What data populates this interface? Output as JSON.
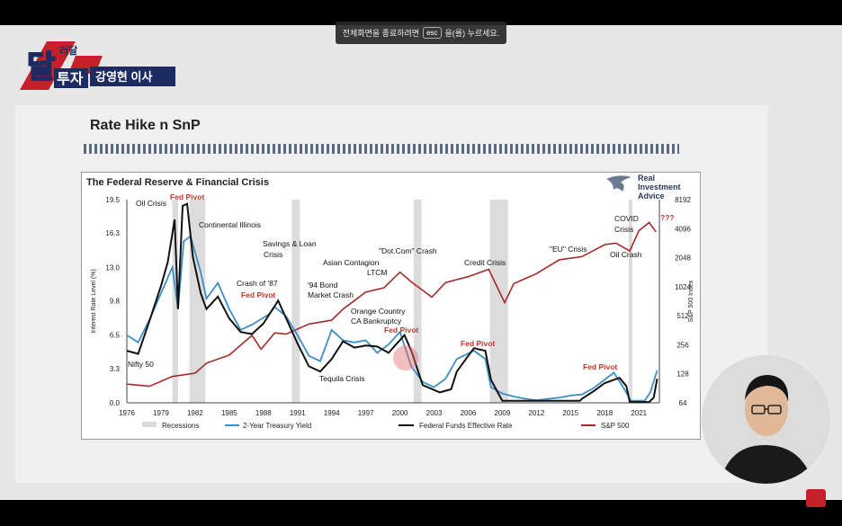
{
  "toast": {
    "text_before": "전체화면을 종료하려면",
    "key": "esc",
    "text_after": "을(를) 누르세요."
  },
  "logo": {
    "big": "달",
    "small_top": "러달",
    "sub": "투자",
    "name": "강영현 이사"
  },
  "slide": {
    "title": "Rate Hike n SnP"
  },
  "chart": {
    "title": "The Federal Reserve & Financial Crisis",
    "brand": [
      "Real",
      "Investment",
      "Advice"
    ]
  },
  "chart_data": {
    "type": "line",
    "title": "The Federal Reserve & Financial Crisis",
    "ylabel": "Interest Rate Level (%)",
    "y2label": "S&P 500 Index",
    "x_ticks": [
      "1976",
      "1979",
      "1982",
      "1985",
      "1988",
      "1991",
      "1994",
      "1997",
      "2000",
      "2003",
      "2006",
      "2009",
      "2012",
      "2015",
      "2018",
      "2021"
    ],
    "y_ticks": [
      "19.5",
      "16.3",
      "13.0",
      "9.8",
      "6.5",
      "3.3",
      "0.0"
    ],
    "y2_ticks": [
      "8192",
      "4096",
      "2048",
      "1024",
      "512",
      "256",
      "128",
      "64"
    ],
    "ylim": [
      0,
      19.5
    ],
    "legend": [
      "Recessions",
      "2-Year Treasury Yield",
      "Federal Funds Effective Rate",
      "S&P 500"
    ],
    "colors": {
      "treasury": "#3c8fc4",
      "fed": "#111111",
      "snp": "#a52a2a",
      "recession": "#dcdcdc",
      "annot_red": "#c0392b"
    },
    "recessions": [
      [
        1980.0,
        1980.5
      ],
      [
        1981.5,
        1982.9
      ],
      [
        1990.5,
        1991.2
      ],
      [
        2001.2,
        2001.9
      ],
      [
        2007.9,
        2009.5
      ],
      [
        2020.1,
        2020.4
      ]
    ],
    "fed_funds": [
      [
        1976,
        5.0
      ],
      [
        1977,
        4.7
      ],
      [
        1978,
        7.9
      ],
      [
        1979,
        11.2
      ],
      [
        1979.6,
        13.5
      ],
      [
        1980.2,
        17.6
      ],
      [
        1980.5,
        9.0
      ],
      [
        1980.9,
        18.9
      ],
      [
        1981.3,
        19.1
      ],
      [
        1981.8,
        14.0
      ],
      [
        1982.5,
        10.5
      ],
      [
        1983,
        9.0
      ],
      [
        1984,
        10.2
      ],
      [
        1985,
        8.1
      ],
      [
        1986,
        6.8
      ],
      [
        1987,
        6.6
      ],
      [
        1988,
        7.6
      ],
      [
        1989.3,
        9.8
      ],
      [
        1990,
        8.1
      ],
      [
        1991,
        5.7
      ],
      [
        1992,
        3.5
      ],
      [
        1993,
        3.0
      ],
      [
        1994,
        4.2
      ],
      [
        1995,
        5.9
      ],
      [
        1996,
        5.3
      ],
      [
        1997,
        5.5
      ],
      [
        1998,
        5.4
      ],
      [
        1999,
        4.8
      ],
      [
        2000.4,
        6.5
      ],
      [
        2001,
        5.0
      ],
      [
        2002,
        1.7
      ],
      [
        2003.5,
        1.0
      ],
      [
        2004.5,
        1.3
      ],
      [
        2005,
        3.0
      ],
      [
        2006.5,
        5.25
      ],
      [
        2007.5,
        5.0
      ],
      [
        2008,
        2.2
      ],
      [
        2009,
        0.2
      ],
      [
        2015.8,
        0.2
      ],
      [
        2016,
        0.4
      ],
      [
        2017,
        1.1
      ],
      [
        2018,
        1.9
      ],
      [
        2019.3,
        2.4
      ],
      [
        2019.9,
        1.6
      ],
      [
        2020.2,
        0.08
      ],
      [
        2021.9,
        0.08
      ],
      [
        2022.3,
        0.5
      ],
      [
        2022.6,
        2.3
      ]
    ],
    "treasury_2y": [
      [
        1976,
        6.5
      ],
      [
        1977,
        5.8
      ],
      [
        1978,
        8.0
      ],
      [
        1979,
        10.5
      ],
      [
        1980,
        13.0
      ],
      [
        1980.5,
        9.0
      ],
      [
        1981,
        15.5
      ],
      [
        1981.6,
        16.0
      ],
      [
        1982.5,
        12.5
      ],
      [
        1983,
        10.0
      ],
      [
        1984,
        11.5
      ],
      [
        1985,
        9.0
      ],
      [
        1986,
        7.0
      ],
      [
        1987,
        7.5
      ],
      [
        1988.5,
        8.5
      ],
      [
        1989,
        9.2
      ],
      [
        1990,
        8.3
      ],
      [
        1991,
        6.5
      ],
      [
        1992,
        4.5
      ],
      [
        1993,
        4.0
      ],
      [
        1994,
        7.0
      ],
      [
        1995,
        6.0
      ],
      [
        1996,
        5.8
      ],
      [
        1997,
        6.0
      ],
      [
        1998,
        4.8
      ],
      [
        1999,
        5.6
      ],
      [
        2000,
        6.8
      ],
      [
        2001,
        3.5
      ],
      [
        2002,
        2.0
      ],
      [
        2003,
        1.5
      ],
      [
        2004,
        2.3
      ],
      [
        2005,
        4.2
      ],
      [
        2006.5,
        5.0
      ],
      [
        2007.5,
        4.2
      ],
      [
        2008,
        1.5
      ],
      [
        2009,
        0.9
      ],
      [
        2010,
        0.6
      ],
      [
        2011,
        0.4
      ],
      [
        2012,
        0.25
      ],
      [
        2014,
        0.5
      ],
      [
        2015,
        0.7
      ],
      [
        2016,
        0.8
      ],
      [
        2017,
        1.4
      ],
      [
        2018.8,
        2.9
      ],
      [
        2019.5,
        1.7
      ],
      [
        2020.3,
        0.2
      ],
      [
        2021.5,
        0.2
      ],
      [
        2022,
        1.0
      ],
      [
        2022.6,
        3.1
      ]
    ],
    "snp500": [
      [
        1976,
        100
      ],
      [
        1978,
        95
      ],
      [
        1980,
        120
      ],
      [
        1982,
        130
      ],
      [
        1983,
        165
      ],
      [
        1985,
        200
      ],
      [
        1987,
        320
      ],
      [
        1987.8,
        230
      ],
      [
        1989,
        340
      ],
      [
        1990,
        330
      ],
      [
        1992,
        420
      ],
      [
        1994,
        460
      ],
      [
        1995,
        600
      ],
      [
        1997,
        900
      ],
      [
        1998.6,
        1000
      ],
      [
        2000,
        1450
      ],
      [
        2001,
        1150
      ],
      [
        2002.8,
        800
      ],
      [
        2004,
        1130
      ],
      [
        2006,
        1300
      ],
      [
        2007.8,
        1550
      ],
      [
        2009.2,
        700
      ],
      [
        2010,
        1100
      ],
      [
        2012,
        1400
      ],
      [
        2014,
        1950
      ],
      [
        2016,
        2100
      ],
      [
        2018,
        2800
      ],
      [
        2019,
        2900
      ],
      [
        2020.2,
        2400
      ],
      [
        2021,
        3900
      ],
      [
        2021.9,
        4750
      ],
      [
        2022.5,
        3800
      ]
    ],
    "annotations": [
      {
        "text": "Oil Crisis",
        "color": "black"
      },
      {
        "text": "Fed Pivot",
        "color": "red"
      },
      {
        "text": "Continental Illinois",
        "color": "black"
      },
      {
        "text": "Savings & Loan",
        "color": "black"
      },
      {
        "text": "Crisis",
        "color": "black"
      },
      {
        "text": "Crash of '87",
        "color": "black"
      },
      {
        "text": "Fed Pivot",
        "color": "red"
      },
      {
        "text": "Asian Contagion",
        "color": "black"
      },
      {
        "text": "LTCM",
        "color": "black"
      },
      {
        "text": "\"Dot.Com\" Crash",
        "color": "black"
      },
      {
        "text": "'94 Bond",
        "color": "black"
      },
      {
        "text": "Market Crash",
        "color": "black"
      },
      {
        "text": "Orange Country",
        "color": "black"
      },
      {
        "text": "CA Bankruptcy",
        "color": "black"
      },
      {
        "text": "Fed Pivot",
        "color": "red"
      },
      {
        "text": "Credit Crisis",
        "color": "black"
      },
      {
        "text": "\"EU\" Crisis",
        "color": "black"
      },
      {
        "text": "COVID",
        "color": "black"
      },
      {
        "text": "Crisis",
        "color": "black"
      },
      {
        "text": "???",
        "color": "red"
      },
      {
        "text": "Oil Crash",
        "color": "black"
      },
      {
        "text": "Fed Pivot",
        "color": "red"
      },
      {
        "text": "Nifty 50",
        "color": "black"
      },
      {
        "text": "Tequila Crisis",
        "color": "black"
      },
      {
        "text": "Fed Pivot",
        "color": "red"
      }
    ]
  }
}
